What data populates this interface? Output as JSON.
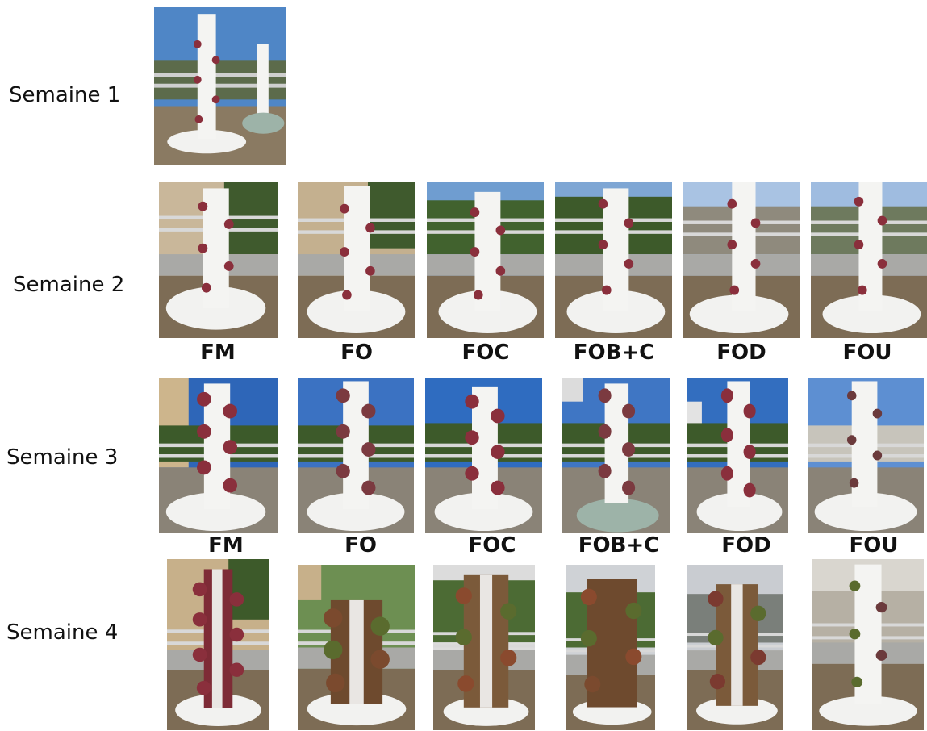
{
  "weeks": [
    {
      "label": "Semaine 1"
    },
    {
      "label": "Semaine 2"
    },
    {
      "label": "Semaine 3"
    },
    {
      "label": "Semaine 4"
    }
  ],
  "treatments_row2": [
    "FM",
    "FO",
    "FOC",
    "FOB+C",
    "FOD",
    "FOU"
  ],
  "treatments_row3": [
    "FM",
    "FO",
    "FOC",
    "FOB+C",
    "FOD",
    "FOU"
  ],
  "colors": {
    "sky": "#4f86c6",
    "sky_overcast": "#c9ccd1",
    "foliage_red": "#8a2f3c",
    "foliage_green": "#5a6b2e",
    "tower": "#f4f4f2",
    "gravel": "#8a7a62"
  }
}
